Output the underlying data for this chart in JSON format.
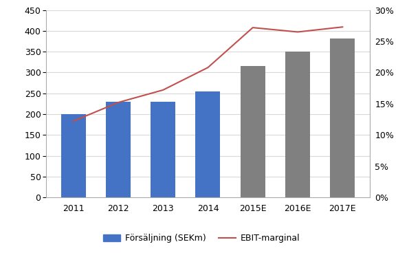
{
  "categories": [
    "2011",
    "2012",
    "2013",
    "2014",
    "2015E",
    "2016E",
    "2017E"
  ],
  "bar_values": [
    200,
    230,
    229,
    255,
    315,
    350,
    382
  ],
  "bar_colors": [
    "#4472C4",
    "#4472C4",
    "#4472C4",
    "#4472C4",
    "#808080",
    "#808080",
    "#808080"
  ],
  "bar_colors_actual": "#4472C4",
  "ebit_marginal": [
    0.122,
    0.152,
    0.172,
    0.208,
    0.272,
    0.265,
    0.273
  ],
  "ebit_color": "#C0504D",
  "ylim_left": [
    0,
    450
  ],
  "ylim_right": [
    0.0,
    0.3
  ],
  "yticks_left": [
    0,
    50,
    100,
    150,
    200,
    250,
    300,
    350,
    400,
    450
  ],
  "yticks_right": [
    0.0,
    0.05,
    0.1,
    0.15,
    0.2,
    0.25,
    0.3
  ],
  "ytick_labels_right": [
    "0%",
    "5%",
    "10%",
    "15%",
    "20%",
    "25%",
    "30%"
  ],
  "legend_bar_label": "Försäljning (SEKm)",
  "legend_line_label": "EBIT-marginal",
  "background_color": "#FFFFFF",
  "grid_color": "#D9D9D9",
  "tick_fontsize": 9,
  "legend_fontsize": 9,
  "spine_color": "#AAAAAA"
}
